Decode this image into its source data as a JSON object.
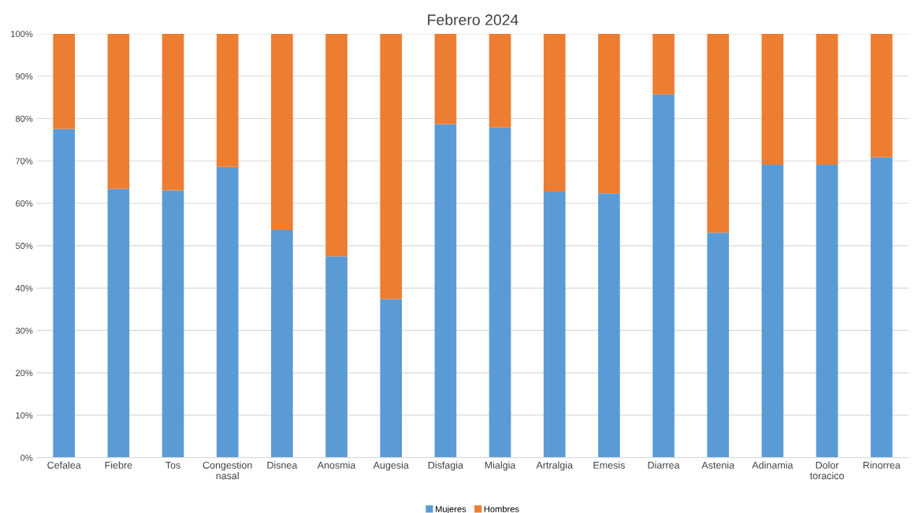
{
  "chart_data": {
    "type": "bar",
    "title": "Febrero 2024",
    "stacked": true,
    "categories": [
      "Cefalea",
      "Fiebre",
      "Tos",
      "Congestion\nnasal",
      "Disnea",
      "Anosmia",
      "Augesia",
      "Disfagia",
      "Mialgia",
      "Artralgia",
      "Emesis",
      "Diarrea",
      "Astenia",
      "Adinamia",
      "Dolor\ntoracico",
      "Rinorrea"
    ],
    "series": [
      {
        "name": "Mujeres",
        "color": "#5b9bd5",
        "values": [
          77.6,
          63.4,
          63.1,
          68.6,
          53.7,
          47.5,
          37.4,
          78.7,
          77.9,
          62.8,
          62.4,
          85.7,
          53.1,
          69.1,
          69.1,
          70.9
        ]
      },
      {
        "name": "Hombres",
        "color": "#ed7d31",
        "values": [
          22.4,
          36.6,
          36.9,
          31.4,
          46.3,
          52.5,
          62.6,
          21.3,
          22.1,
          37.2,
          37.6,
          14.3,
          46.9,
          30.9,
          30.9,
          29.1
        ]
      }
    ],
    "ylim": [
      0,
      100
    ],
    "yticks": [
      {
        "value": 0,
        "label": "0%"
      },
      {
        "value": 10,
        "label": "10%"
      },
      {
        "value": 20,
        "label": "20%"
      },
      {
        "value": 30,
        "label": "30%"
      },
      {
        "value": 40,
        "label": "40%"
      },
      {
        "value": 50,
        "label": "50%"
      },
      {
        "value": 60,
        "label": "60%"
      },
      {
        "value": 70,
        "label": "70%"
      },
      {
        "value": 80,
        "label": "80%"
      },
      {
        "value": 90,
        "label": "90%"
      },
      {
        "value": 100,
        "label": "100%"
      }
    ],
    "grid": "y",
    "legend": "bottom"
  }
}
